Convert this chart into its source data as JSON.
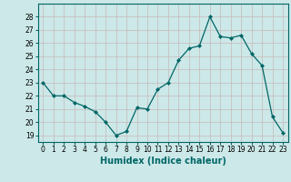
{
  "x": [
    0,
    1,
    2,
    3,
    4,
    5,
    6,
    7,
    8,
    9,
    10,
    11,
    12,
    13,
    14,
    15,
    16,
    17,
    18,
    19,
    20,
    21,
    22,
    23
  ],
  "y": [
    23.0,
    22.0,
    22.0,
    21.5,
    21.2,
    20.8,
    20.0,
    19.0,
    19.3,
    21.1,
    21.0,
    22.5,
    23.0,
    24.7,
    25.6,
    25.8,
    28.0,
    26.5,
    26.4,
    26.6,
    25.2,
    24.3,
    20.4,
    19.2
  ],
  "line_color": "#006666",
  "marker": "D",
  "markersize": 2.0,
  "linewidth": 0.9,
  "xlabel": "Humidex (Indice chaleur)",
  "xlabel_style": "bold",
  "ylim": [
    18.5,
    29.0
  ],
  "xlim": [
    -0.5,
    23.5
  ],
  "yticks": [
    19,
    20,
    21,
    22,
    23,
    24,
    25,
    26,
    27,
    28
  ],
  "xticks": [
    0,
    1,
    2,
    3,
    4,
    5,
    6,
    7,
    8,
    9,
    10,
    11,
    12,
    13,
    14,
    15,
    16,
    17,
    18,
    19,
    20,
    21,
    22,
    23
  ],
  "bg_color": "#cce8e8",
  "grid_color": "#c8b8b8",
  "tick_fontsize": 5.5,
  "xlabel_fontsize": 7.0
}
